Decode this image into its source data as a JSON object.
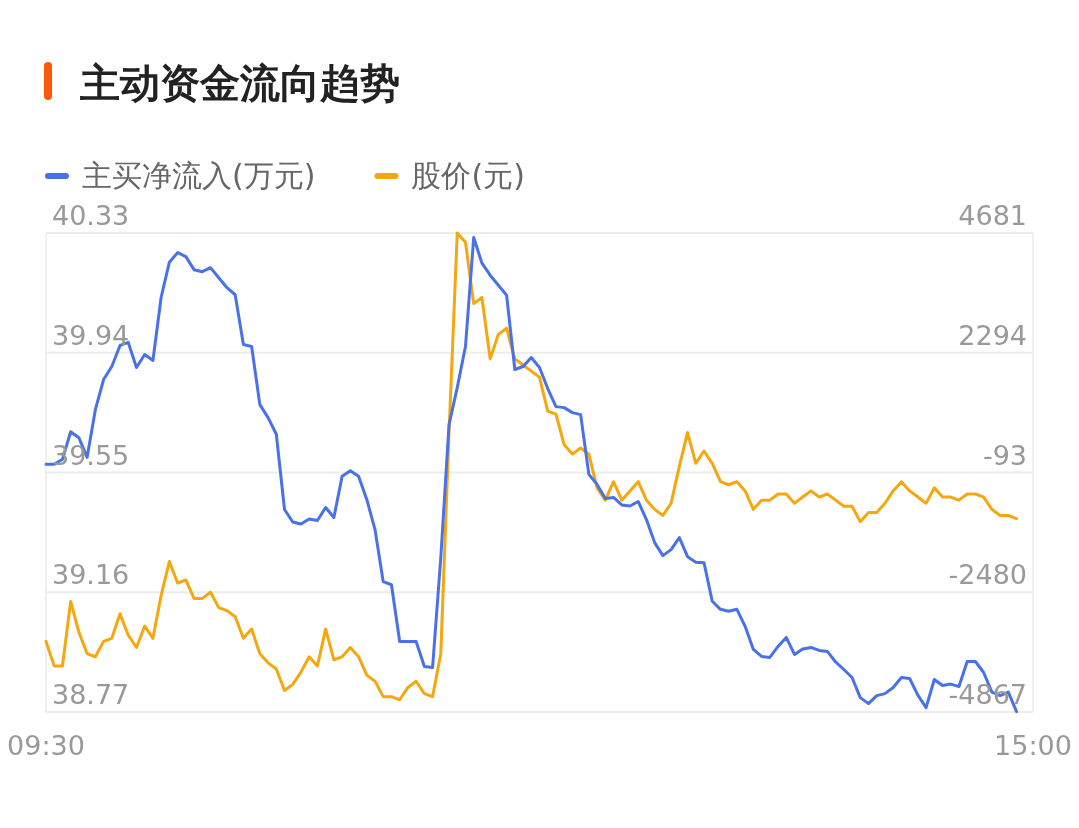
{
  "chart_data": {
    "type": "line",
    "title": "主动资金流向趋势",
    "legend": "top left",
    "grid": "y",
    "line_style": "solid",
    "marker": "none",
    "categories": [
      "09:30",
      null,
      null,
      null,
      null,
      null,
      null,
      null,
      null,
      null,
      null,
      null,
      null,
      null,
      null,
      null,
      null,
      null,
      null,
      null,
      null,
      null,
      null,
      null,
      null,
      null,
      null,
      null,
      null,
      null,
      null,
      null,
      null,
      null,
      null,
      null,
      null,
      null,
      null,
      null,
      null,
      null,
      null,
      null,
      null,
      null,
      null,
      null,
      null,
      null,
      null,
      null,
      null,
      null,
      null,
      null,
      null,
      null,
      null,
      null,
      null,
      null,
      null,
      null,
      null,
      null,
      null,
      null,
      null,
      null,
      null,
      null,
      null,
      null,
      null,
      null,
      null,
      null,
      null,
      null,
      null,
      null,
      null,
      null,
      null,
      null,
      null,
      null,
      null,
      null,
      null,
      null,
      null,
      null,
      null,
      null,
      null,
      null,
      null,
      null,
      null,
      null,
      null,
      null,
      null,
      null,
      null,
      null,
      null,
      null,
      null,
      null,
      null,
      null,
      null,
      null,
      null,
      null,
      null,
      null,
      "15:00"
    ],
    "ylim": [
      38.77,
      40.33
    ],
    "yticks": [
      38.77,
      39.16,
      39.55,
      39.94,
      40.33
    ],
    "y2lim": [
      -4867,
      4681
    ],
    "y2ticks": [
      -4867,
      -2480,
      -93,
      2294,
      4681
    ],
    "series": [
      {
        "name": "主买净流入(万元)",
        "color": "#4a72e8",
        "axis": "y2",
        "values": [
          70,
          70,
          170,
          720,
          600,
          210,
          1160,
          1760,
          2020,
          2440,
          2500,
          2000,
          2260,
          2140,
          3400,
          4100,
          4290,
          4210,
          3950,
          3910,
          3990,
          3790,
          3590,
          3450,
          2460,
          2420,
          1260,
          1000,
          670,
          -830,
          -1080,
          -1120,
          -1020,
          -1050,
          -790,
          -990,
          -170,
          -60,
          -170,
          -630,
          -1230,
          -2270,
          -2330,
          -3460,
          -3460,
          -3460,
          -3960,
          -3980,
          -1790,
          860,
          1600,
          2420,
          4590,
          4080,
          3840,
          3640,
          3440,
          1960,
          2020,
          2200,
          2000,
          1580,
          1220,
          1200,
          1100,
          1060,
          -130,
          -330,
          -610,
          -590,
          -740,
          -760,
          -670,
          -1030,
          -1490,
          -1750,
          -1630,
          -1390,
          -1770,
          -1880,
          -1890,
          -2660,
          -2820,
          -2860,
          -2820,
          -3160,
          -3620,
          -3760,
          -3780,
          -3560,
          -3380,
          -3720,
          -3610,
          -3580,
          -3640,
          -3660,
          -3870,
          -4020,
          -4180,
          -4580,
          -4700,
          -4540,
          -4500,
          -4380,
          -4180,
          -4200,
          -4530,
          -4780,
          -4220,
          -4340,
          -4310,
          -4360,
          -3860,
          -3860,
          -4080,
          -4470,
          -4540,
          -4470,
          -4860,
          null,
          null
        ]
      },
      {
        "name": "股价(元)",
        "color": "#f5a70f",
        "axis": "y",
        "values": [
          39.0,
          38.92,
          38.92,
          39.13,
          39.03,
          38.96,
          38.95,
          39.0,
          39.01,
          39.09,
          39.02,
          38.98,
          39.05,
          39.01,
          39.15,
          39.26,
          39.19,
          39.2,
          39.14,
          39.14,
          39.16,
          39.11,
          39.1,
          39.08,
          39.01,
          39.04,
          38.96,
          38.93,
          38.91,
          38.84,
          38.86,
          38.9,
          38.95,
          38.92,
          39.04,
          38.94,
          38.95,
          38.98,
          38.95,
          38.89,
          38.87,
          38.82,
          38.82,
          38.81,
          38.85,
          38.87,
          38.83,
          38.82,
          38.96,
          39.68,
          40.33,
          40.3,
          40.1,
          40.12,
          39.92,
          40.0,
          40.02,
          39.92,
          39.9,
          39.88,
          39.86,
          39.75,
          39.74,
          39.64,
          39.61,
          39.63,
          39.61,
          39.5,
          39.46,
          39.52,
          39.46,
          39.49,
          39.52,
          39.46,
          39.43,
          39.41,
          39.45,
          39.57,
          39.68,
          39.58,
          39.62,
          39.58,
          39.52,
          39.51,
          39.52,
          39.49,
          39.43,
          39.46,
          39.46,
          39.48,
          39.48,
          39.45,
          39.47,
          39.49,
          39.47,
          39.48,
          39.46,
          39.44,
          39.44,
          39.39,
          39.42,
          39.42,
          39.45,
          39.49,
          39.52,
          39.49,
          39.47,
          39.45,
          39.5,
          39.47,
          39.47,
          39.46,
          39.48,
          39.48,
          39.47,
          39.43,
          39.41,
          39.41,
          39.4,
          null,
          null
        ]
      }
    ]
  }
}
